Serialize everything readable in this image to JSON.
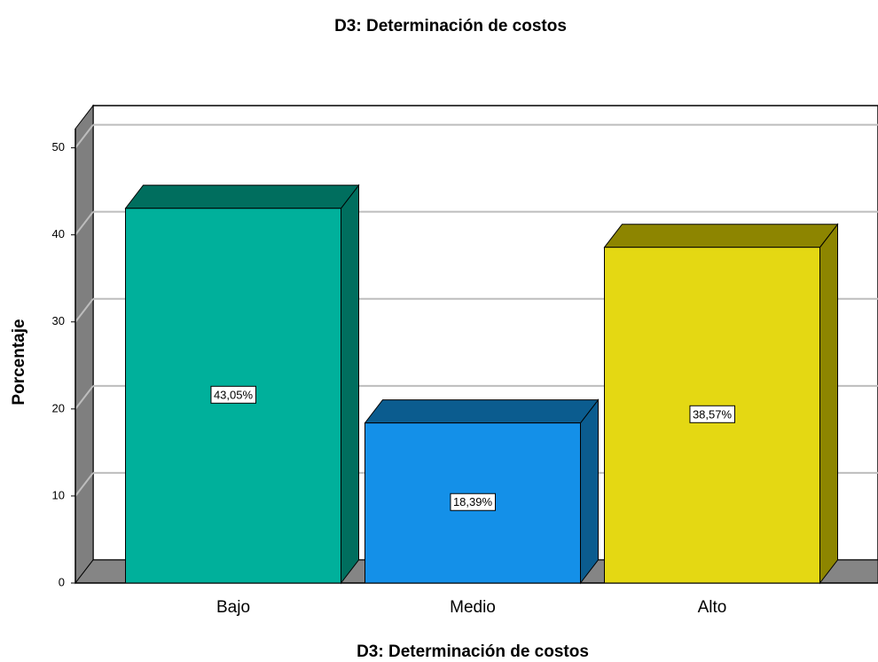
{
  "chart_data": {
    "type": "bar3d",
    "title": "D3: Determinación de costos",
    "x_label": "D3: Determinación de costos",
    "y_label": "Porcentaje",
    "categories": [
      "Bajo",
      "Medio",
      "Alto"
    ],
    "values": [
      43.05,
      18.39,
      38.57
    ],
    "value_labels": [
      "43,05%",
      "18,39%",
      "38,57%"
    ],
    "colors": [
      "#00b09b",
      "#1490e8",
      "#e4d813"
    ],
    "top_colors": [
      "#006e5e",
      "#0b5c8f",
      "#8d8500"
    ],
    "ylim": [
      0,
      52.2
    ],
    "yticks": [
      0,
      10,
      20,
      30,
      40,
      50
    ],
    "grid": true
  }
}
